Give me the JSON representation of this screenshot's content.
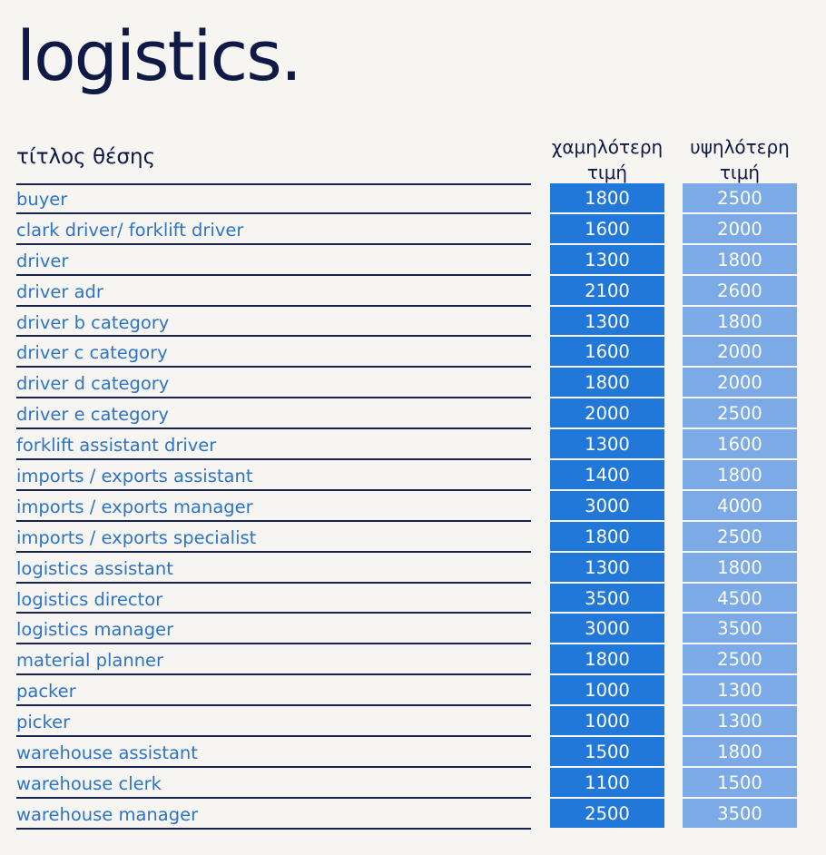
{
  "title": "logistics.",
  "headers": {
    "job_title": "τίτλος θέσης",
    "lowest_price": "χαμηλότερη τιμή",
    "highest_price": "υψηλότερη τιμή"
  },
  "colors": {
    "low_cell": "#2278d9",
    "high_cell": "#7baae6",
    "job_text": "#2e74c6",
    "heading_text": "#0e1a45"
  },
  "rows": [
    {
      "job": "buyer",
      "low": "1800",
      "high": "2500"
    },
    {
      "job": "clark driver/ forklift driver",
      "low": "1600",
      "high": "2000"
    },
    {
      "job": "driver",
      "low": "1300",
      "high": "1800"
    },
    {
      "job": "driver adr",
      "low": "2100",
      "high": "2600"
    },
    {
      "job": "driver b category",
      "low": "1300",
      "high": "1800"
    },
    {
      "job": "driver c category",
      "low": "1600",
      "high": "2000"
    },
    {
      "job": "driver d category",
      "low": "1800",
      "high": "2000"
    },
    {
      "job": "driver e category",
      "low": "2000",
      "high": "2500"
    },
    {
      "job": "forklift assistant driver",
      "low": "1300",
      "high": "1600"
    },
    {
      "job": "imports / exports assistant",
      "low": "1400",
      "high": "1800"
    },
    {
      "job": "imports / exports manager",
      "low": "3000",
      "high": "4000"
    },
    {
      "job": "imports / exports specialist",
      "low": "1800",
      "high": "2500"
    },
    {
      "job": "logistics assistant",
      "low": "1300",
      "high": "1800"
    },
    {
      "job": "logistics director",
      "low": "3500",
      "high": "4500"
    },
    {
      "job": "logistics manager",
      "low": "3000",
      "high": "3500"
    },
    {
      "job": "material planner",
      "low": "1800",
      "high": "2500"
    },
    {
      "job": "packer",
      "low": "1000",
      "high": "1300"
    },
    {
      "job": "picker",
      "low": "1000",
      "high": "1300"
    },
    {
      "job": "warehouse assistant",
      "low": "1500",
      "high": "1800"
    },
    {
      "job": "warehouse clerk",
      "low": "1100",
      "high": "1500"
    },
    {
      "job": "warehouse manager",
      "low": "2500",
      "high": "3500"
    }
  ]
}
